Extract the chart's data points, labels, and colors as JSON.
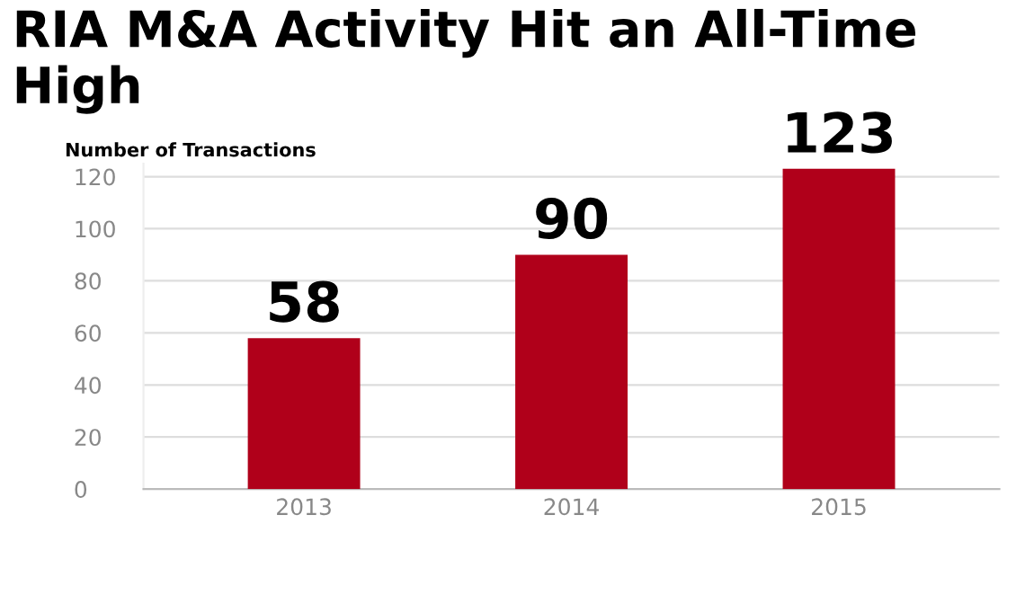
{
  "chart_data": {
    "type": "bar",
    "title": "RIA M&A Activity Hit an All-Time High",
    "ylabel": "Number of Transactions",
    "categories": [
      "2013",
      "2014",
      "2015"
    ],
    "values": [
      58,
      90,
      123
    ],
    "color": "#b0001a",
    "ylim": [
      0,
      125
    ],
    "yticks": [
      0,
      20,
      40,
      60,
      80,
      100,
      120
    ],
    "grid": "y",
    "data_labels": true
  }
}
